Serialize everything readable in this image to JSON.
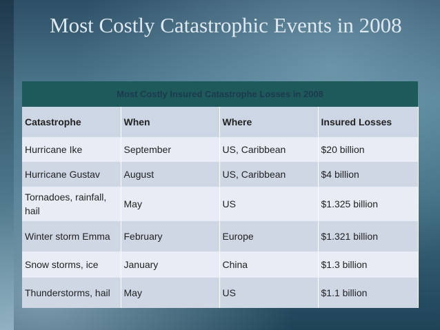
{
  "header": {
    "title": "Most Costly Catastrophic Events in 2008"
  },
  "table": {
    "title": "Most Costly Insured Catastrophe Losses in 2008",
    "columns": [
      "Catastrophe",
      "When",
      "Where",
      "Insured Losses"
    ],
    "rows": [
      [
        "Hurricane Ike",
        "September",
        "US, Caribbean",
        "$20 billion"
      ],
      [
        "Hurricane Gustav",
        "August",
        "US, Caribbean",
        "$4 billion"
      ],
      [
        "Tornadoes, rainfall, hail",
        "May",
        "US",
        "$1.325 billion"
      ],
      [
        "Winter storm Emma",
        "February",
        "Europe",
        "$1.321 billion"
      ],
      [
        "Snow storms, ice",
        "January",
        "China",
        "$1.3 billion"
      ],
      [
        "Thunderstorms, hail",
        "May",
        "US",
        "$1.1 billion"
      ]
    ]
  }
}
